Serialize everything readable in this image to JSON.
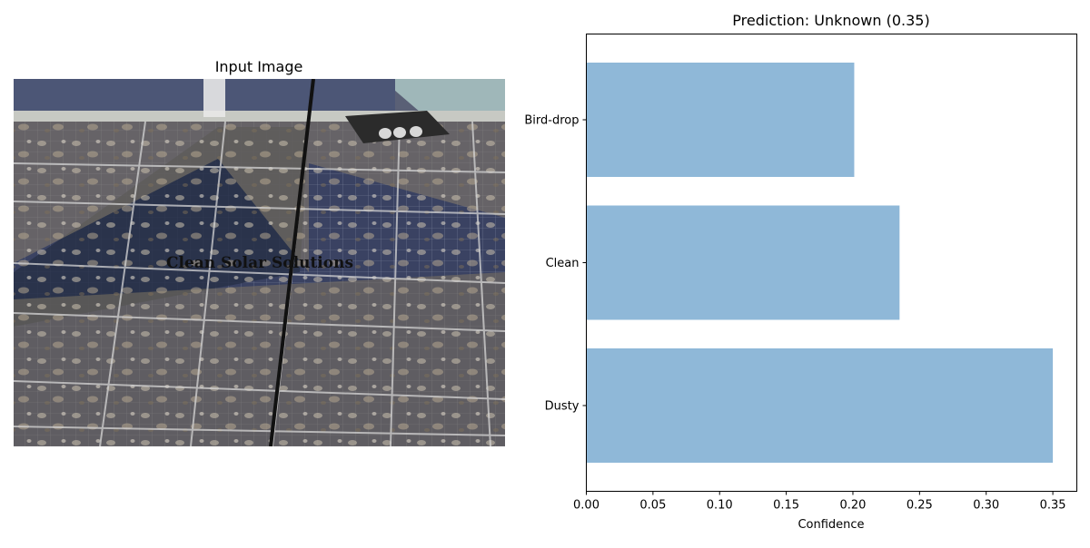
{
  "left_panel": {
    "title": "Input Image",
    "photo_overlay_text": "Clean Solar Solutions",
    "colors": {
      "panel_dark": "#2d3550",
      "panel_mid": "#4c5676",
      "dust": "#8a7f6c",
      "shadow": "#2a2f45",
      "frame": "#d5d5d5",
      "roof": "#9fb7b9"
    }
  },
  "chart_data": {
    "type": "bar",
    "orientation": "horizontal",
    "title": "Prediction: Unknown (0.35)",
    "xlabel": "Confidence",
    "ylabel": "",
    "categories": [
      "Dusty",
      "Clean",
      "Bird-drop"
    ],
    "values": [
      0.35,
      0.235,
      0.201
    ],
    "xlim": [
      0,
      0.368
    ],
    "xticks": [
      0.0,
      0.05,
      0.1,
      0.15,
      0.2,
      0.25,
      0.3,
      0.35
    ],
    "xtick_labels": [
      "0.00",
      "0.05",
      "0.10",
      "0.15",
      "0.20",
      "0.25",
      "0.30",
      "0.35"
    ],
    "grid": false,
    "colors": {
      "bar": "#8fb8d8",
      "axis": "#000000"
    }
  }
}
